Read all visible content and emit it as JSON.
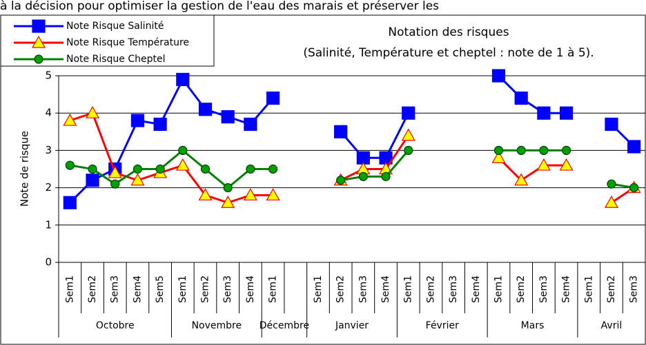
{
  "caption": "à la décision pour optimiser la gestion de l'eau des marais et préserver les",
  "chart_data": {
    "type": "line",
    "title": [
      "Notation des risques",
      "(Salinité, Température et cheptel : note de 1 à 5)."
    ],
    "y_label": "Note de risque",
    "groups": [
      {
        "name": "Octobre",
        "categories": [
          "Sem1",
          "Sem2",
          "Sem3",
          "Sem4",
          "Sem5"
        ]
      },
      {
        "name": "Novembre",
        "categories": [
          "Sem1",
          "Sem2",
          "Sem3",
          "Sem4"
        ]
      },
      {
        "name": "Décembre",
        "categories": [
          "Sem1",
          null
        ]
      },
      {
        "name": "Janvier",
        "categories": [
          "Sem1",
          "Sem2",
          "Sem3",
          "Sem4"
        ]
      },
      {
        "name": "Février",
        "categories": [
          "Sem1",
          "Sem2",
          "Sem3",
          "Sem4"
        ]
      },
      {
        "name": "Mars",
        "categories": [
          "Sem1",
          "Sem2",
          "Sem3",
          "Sem4"
        ]
      },
      {
        "name": "Avril",
        "categories": [
          "Sem1",
          "Sem2",
          "Sem3"
        ]
      }
    ],
    "series": [
      {
        "name": "Note Risque Salinité",
        "color": "#0000ff",
        "marker": "square",
        "marker_fill": "#0000ff",
        "marker_stroke": "#0000ff",
        "values": [
          1.6,
          2.2,
          2.5,
          3.8,
          3.7,
          4.9,
          4.1,
          3.9,
          3.7,
          4.4,
          null,
          null,
          3.5,
          2.8,
          2.8,
          4.0,
          null,
          null,
          null,
          5.0,
          4.4,
          4.0,
          4.0,
          null,
          3.7,
          3.1
        ]
      },
      {
        "name": "Note Risque Température",
        "color": "#ff0000",
        "marker": "triangle",
        "marker_fill": "#ffff00",
        "marker_stroke": "#ff0000",
        "values": [
          3.8,
          4.0,
          2.4,
          2.2,
          2.4,
          2.6,
          1.8,
          1.6,
          1.8,
          1.8,
          null,
          null,
          2.2,
          2.5,
          2.5,
          3.4,
          null,
          null,
          null,
          2.8,
          2.2,
          2.6,
          2.6,
          null,
          1.6,
          2.0
        ]
      },
      {
        "name": "Note Risque Cheptel",
        "color": "#008000",
        "marker": "circle",
        "marker_fill": "#00a000",
        "marker_stroke": "#004000",
        "values": [
          2.6,
          2.5,
          2.1,
          2.5,
          2.5,
          3.0,
          2.5,
          2.0,
          2.5,
          2.5,
          null,
          null,
          2.2,
          2.3,
          2.3,
          3.0,
          null,
          null,
          null,
          3.0,
          3.0,
          3.0,
          3.0,
          null,
          2.1,
          2.0
        ]
      }
    ],
    "ylim": [
      0,
      5
    ],
    "yticks": [
      0,
      1,
      2,
      3,
      4,
      5
    ],
    "grid": true,
    "legend": "top-left"
  }
}
